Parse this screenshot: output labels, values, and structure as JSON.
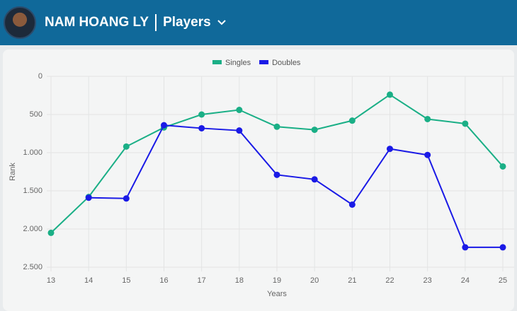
{
  "header": {
    "name": "NAM HOANG LY",
    "section": "Players"
  },
  "chart_data": {
    "type": "line",
    "x": [
      13,
      14,
      15,
      16,
      17,
      18,
      19,
      20,
      21,
      22,
      23,
      24,
      25
    ],
    "xlim": [
      13,
      25
    ],
    "xticks": [
      13,
      14,
      15,
      16,
      17,
      18,
      19,
      20,
      21,
      22,
      23,
      24,
      25
    ],
    "ylim": [
      0,
      2500
    ],
    "y_reversed": true,
    "yticks": [
      0,
      500,
      {
        "value": 1000,
        "label": "1.000"
      },
      {
        "value": 1500,
        "label": "1.500"
      },
      {
        "value": 2000,
        "label": "2.000"
      },
      {
        "value": 2500,
        "label": "2.500"
      }
    ],
    "grid": true,
    "legend": "top",
    "x_label": "Years",
    "y_label": "Rank",
    "series": [
      {
        "name": "Singles",
        "color": "#1aaf86",
        "values": [
          2050,
          1580,
          920,
          670,
          500,
          440,
          660,
          700,
          580,
          240,
          560,
          620,
          1180
        ]
      },
      {
        "name": "Doubles",
        "color": "#1a1ae6",
        "values": [
          null,
          1590,
          1600,
          640,
          680,
          710,
          1290,
          1350,
          1680,
          950,
          1030,
          2240,
          2240
        ]
      }
    ]
  }
}
